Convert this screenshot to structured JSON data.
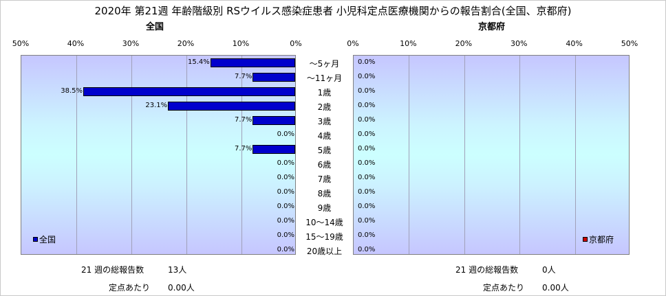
{
  "title": "2020年 第21週 年齢階級別 RSウイルス感染症患者 小児科定点医療機関からの報告割合(全国、京都府)",
  "chart_data": {
    "type": "bar",
    "orientation": "horizontal",
    "categories": [
      "～5ヶ月",
      "～11ヶ月",
      "1歳",
      "2歳",
      "3歳",
      "4歳",
      "5歳",
      "6歳",
      "7歳",
      "8歳",
      "9歳",
      "10～14歳",
      "15～19歳",
      "20歳以上"
    ],
    "series": [
      {
        "name": "全国",
        "panel_title": "全国",
        "values": [
          15.4,
          7.7,
          38.5,
          23.1,
          7.7,
          0.0,
          7.7,
          0.0,
          0.0,
          0.0,
          0.0,
          0.0,
          0.0,
          0.0
        ],
        "labels": [
          "15.4%",
          "7.7%",
          "38.5%",
          "23.1%",
          "7.7%",
          "0.0%",
          "7.7%",
          "0.0%",
          "0.0%",
          "0.0%",
          "0.0%",
          "0.0%",
          "0.0%",
          "0.0%"
        ],
        "color": "#0000cc",
        "direction": "reversed"
      },
      {
        "name": "京都府",
        "panel_title": "京都府",
        "values": [
          0.0,
          0.0,
          0.0,
          0.0,
          0.0,
          0.0,
          0.0,
          0.0,
          0.0,
          0.0,
          0.0,
          0.0,
          0.0,
          0.0
        ],
        "labels": [
          "0.0%",
          "0.0%",
          "0.0%",
          "0.0%",
          "0.0%",
          "0.0%",
          "0.0%",
          "0.0%",
          "0.0%",
          "0.0%",
          "0.0%",
          "0.0%",
          "0.0%",
          "0.0%"
        ],
        "color": "#cc0000",
        "direction": "normal"
      }
    ],
    "xlim": [
      0,
      50
    ],
    "xticks_left": [
      "50%",
      "40%",
      "30%",
      "20%",
      "10%",
      "0%"
    ],
    "xticks_right": [
      "0%",
      "10%",
      "20%",
      "30%",
      "40%",
      "50%"
    ],
    "grid": true,
    "legend_left": "bottom-left",
    "legend_right": "bottom-right"
  },
  "footer": {
    "left": {
      "total_label": "21 週の総報告数",
      "total_value": "13人",
      "per_label": "定点あたり",
      "per_value": "0.00人"
    },
    "right": {
      "total_label": "21 週の総報告数",
      "total_value": "0人",
      "per_label": "定点あたり",
      "per_value": "0.00人"
    }
  }
}
